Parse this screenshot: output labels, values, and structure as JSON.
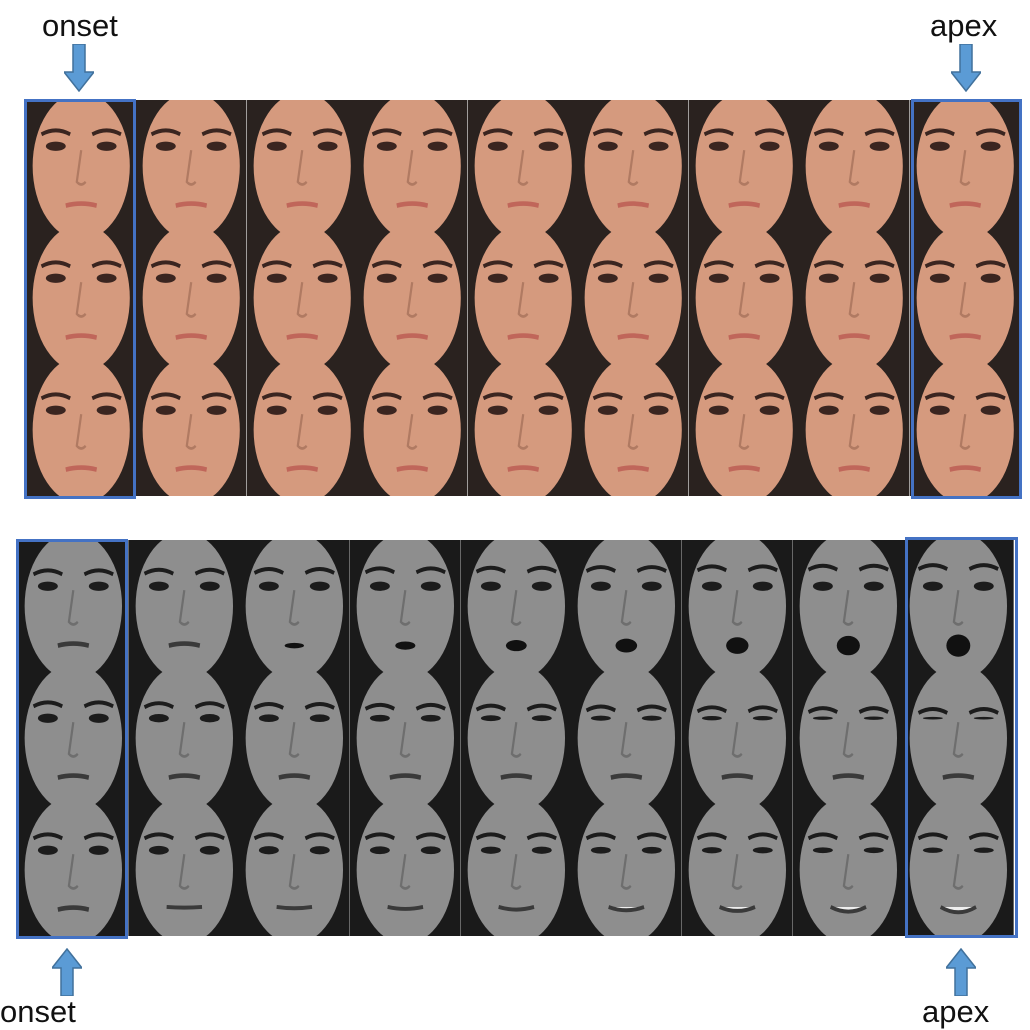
{
  "labels": {
    "top_onset": "onset",
    "top_apex": "apex",
    "bottom_onset": "onset",
    "bottom_apex": "apex"
  },
  "colors": {
    "frame": "#4472c4",
    "arrow_fill": "#5b9bd5",
    "arrow_stroke": "#41719c",
    "color_skin": "#d59a7e",
    "color_bg": "#2a221f",
    "gray_skin": "#8e8e8e",
    "gray_bg": "#1a1a1a"
  },
  "panels": [
    {
      "id": "color-sequences",
      "style": "color",
      "rows": 3,
      "frames_per_row": 9,
      "highlight": [
        "onset",
        "apex"
      ]
    },
    {
      "id": "grayscale-sequences",
      "style": "gray",
      "rows": 3,
      "frames_per_row": 9,
      "expressions": [
        "surprise",
        "disgust",
        "happiness"
      ],
      "highlight": [
        "onset",
        "apex"
      ]
    }
  ]
}
